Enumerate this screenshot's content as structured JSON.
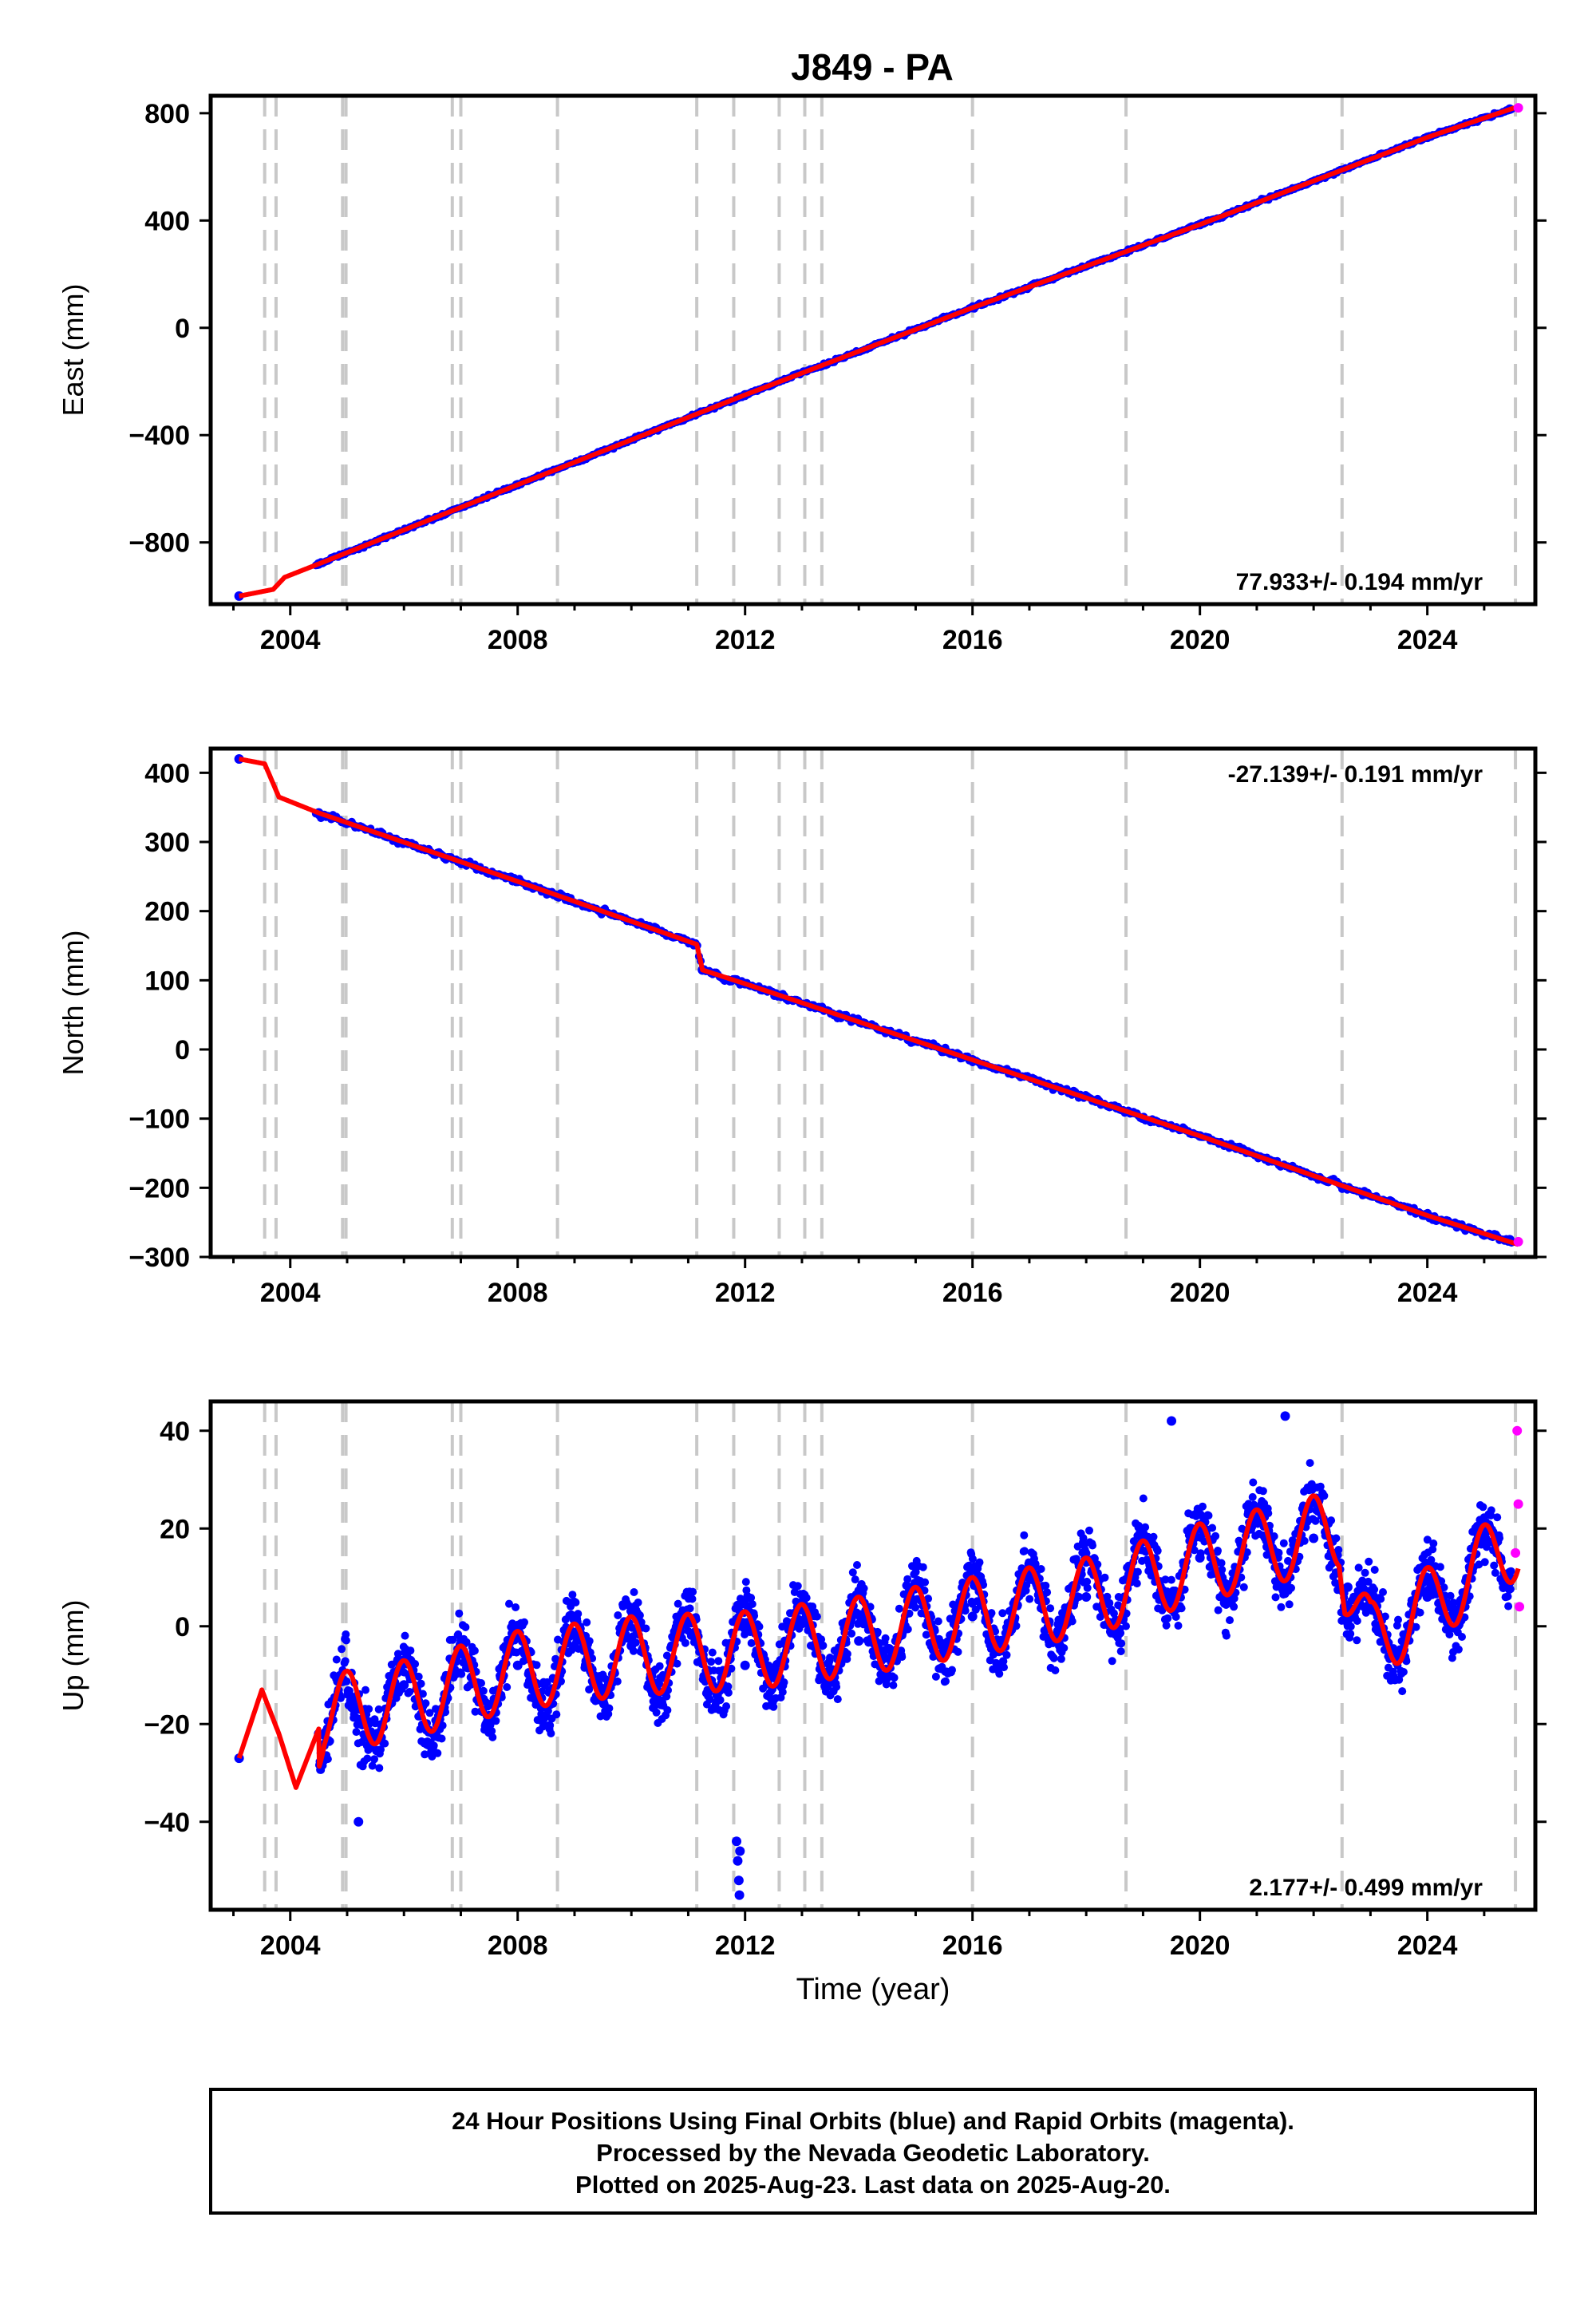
{
  "title": "J849 - PA",
  "footer": {
    "line1": "24 Hour Positions Using Final Orbits (blue) and Rapid Orbits (magenta).",
    "line2": "Processed by the Nevada Geodetic Laboratory.",
    "line3": "Plotted on 2025-Aug-23. Last data on 2025-Aug-20."
  },
  "colors": {
    "final": "#0000ff",
    "rapid": "#ff00ff",
    "model": "#ff0000",
    "breaks": "#c8c8c8"
  },
  "chart_data": [
    {
      "type": "scatter",
      "ylabel": "East (mm)",
      "xlim": [
        2002.6,
        2025.9
      ],
      "ylim": [
        -1030,
        865
      ],
      "xticks": [
        2004,
        2008,
        2012,
        2016,
        2020,
        2024
      ],
      "yticks": [
        -800,
        -400,
        0,
        400,
        800
      ],
      "rate": "77.933+/- 0.194 mm/yr",
      "breaks": [
        2003.55,
        2003.75,
        2004.92,
        2004.98,
        2006.85,
        2007.0,
        2008.7,
        2011.15,
        2011.8,
        2012.6,
        2013.05,
        2013.35,
        2016.0,
        2018.7,
        2022.5,
        2025.55
      ],
      "series": [
        {
          "role": "final",
          "points": [
            [
              2003.1,
              -1000
            ],
            [
              2004.5,
              -880
            ],
            [
              2008,
              -585
            ],
            [
              2012,
              -250
            ],
            [
              2016,
              75
            ],
            [
              2020,
              385
            ],
            [
              2024,
              710
            ],
            [
              2025.45,
              815
            ]
          ]
        },
        {
          "role": "rapid",
          "points": [
            [
              2025.6,
              820
            ]
          ]
        },
        {
          "role": "model",
          "points": [
            [
              2003.1,
              -1000
            ],
            [
              2003.7,
              -975
            ],
            [
              2003.9,
              -930
            ],
            [
              2004.5,
              -880
            ],
            [
              2008,
              -585
            ],
            [
              2012,
              -250
            ],
            [
              2016,
              75
            ],
            [
              2020,
              385
            ],
            [
              2024,
              710
            ],
            [
              2025.6,
              825
            ]
          ]
        }
      ]
    },
    {
      "type": "scatter",
      "ylabel": "North (mm)",
      "xlim": [
        2002.6,
        2025.9
      ],
      "ylim": [
        -300,
        435
      ],
      "xticks": [
        2004,
        2008,
        2012,
        2016,
        2020,
        2024
      ],
      "yticks": [
        -300,
        -200,
        -100,
        0,
        100,
        200,
        300,
        400
      ],
      "rate": "-27.139+/- 0.191 mm/yr",
      "breaks": [
        2003.55,
        2003.75,
        2004.92,
        2004.98,
        2006.85,
        2007.0,
        2008.7,
        2011.15,
        2011.8,
        2012.6,
        2013.05,
        2013.35,
        2016.0,
        2018.7,
        2022.5,
        2025.55
      ],
      "series": [
        {
          "role": "final",
          "points": [
            [
              2003.1,
              420
            ],
            [
              2004.5,
              342
            ],
            [
              2008,
              243
            ],
            [
              2011.1,
              152
            ],
            [
              2011.25,
              115
            ],
            [
              2012,
              95
            ],
            [
              2016,
              -15
            ],
            [
              2020,
              -125
            ],
            [
              2024,
              -240
            ],
            [
              2025.45,
              -275
            ]
          ]
        },
        {
          "role": "rapid",
          "points": [
            [
              2025.6,
              -278
            ]
          ]
        },
        {
          "role": "model",
          "points": [
            [
              2003.1,
              420
            ],
            [
              2003.55,
              413
            ],
            [
              2003.8,
              365
            ],
            [
              2004.5,
              342
            ],
            [
              2008,
              243
            ],
            [
              2011.15,
              152
            ],
            [
              2011.25,
              115
            ],
            [
              2012,
              95
            ],
            [
              2016,
              -15
            ],
            [
              2020,
              -125
            ],
            [
              2024,
              -240
            ],
            [
              2025.6,
              -282
            ]
          ]
        }
      ]
    },
    {
      "type": "scatter",
      "ylabel": "Up (mm)",
      "xlabel": "Time (year)",
      "xlim": [
        2002.6,
        2025.9
      ],
      "ylim": [
        -58,
        46
      ],
      "xticks": [
        2004,
        2008,
        2012,
        2016,
        2020,
        2024
      ],
      "yticks": [
        -40,
        -20,
        0,
        20,
        40
      ],
      "rate": "2.177+/- 0.499 mm/yr",
      "breaks": [
        2003.55,
        2003.75,
        2004.92,
        2004.98,
        2006.85,
        2007.0,
        2008.7,
        2011.15,
        2011.8,
        2012.6,
        2013.05,
        2013.35,
        2016.0,
        2018.7,
        2022.5,
        2025.55
      ],
      "series": [
        {
          "role": "final",
          "points": [
            [
              2003.1,
              -27
            ],
            [
              2004.5,
              -22
            ],
            [
              2005.2,
              -40
            ],
            [
              2006,
              -12
            ],
            [
              2008,
              -8
            ],
            [
              2010,
              -4
            ],
            [
              2011.9,
              -55
            ],
            [
              2012,
              -8
            ],
            [
              2014,
              -3
            ],
            [
              2016,
              2
            ],
            [
              2018,
              6
            ],
            [
              2019.5,
              42
            ],
            [
              2020,
              14
            ],
            [
              2021.5,
              43
            ],
            [
              2022,
              18
            ],
            [
              2022.6,
              8
            ],
            [
              2024,
              6
            ],
            [
              2025.45,
              10
            ]
          ]
        },
        {
          "role": "rapid",
          "points": [
            [
              2025.58,
              40
            ],
            [
              2025.6,
              25
            ],
            [
              2025.55,
              15
            ],
            [
              2025.62,
              4
            ]
          ]
        },
        {
          "role": "model",
          "points": [
            [
              2003.1,
              -27
            ],
            [
              2003.5,
              -13
            ],
            [
              2003.8,
              -22
            ],
            [
              2004.1,
              -33
            ],
            [
              2004.6,
              -18
            ],
            [
              2006,
              -15
            ],
            [
              2008,
              -9
            ],
            [
              2010,
              -6
            ],
            [
              2012,
              -5
            ],
            [
              2014,
              -2
            ],
            [
              2016,
              2
            ],
            [
              2018,
              6
            ],
            [
              2020,
              13
            ],
            [
              2022.45,
              20
            ],
            [
              2022.55,
              10
            ],
            [
              2023,
              -3
            ],
            [
              2024,
              4
            ],
            [
              2025.6,
              18
            ]
          ]
        }
      ]
    }
  ]
}
